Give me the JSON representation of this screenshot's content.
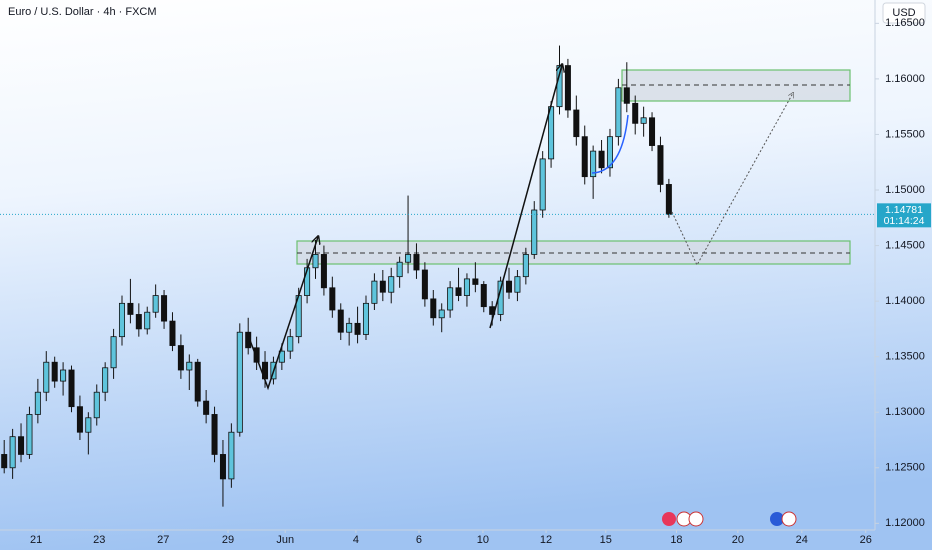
{
  "chart_data": {
    "type": "candlestick",
    "title": "Euro / U.S. Dollar · 4h · FXCM",
    "currency": "USD",
    "up_color": "#5ec4dc",
    "down_color": "#111111",
    "wick_color": "#111111",
    "grid": false,
    "last_price": 1.14781,
    "countdown": "01:14:24",
    "xlim": [
      -0.5,
      103.5
    ],
    "ylim": [
      1.1194,
      1.1671
    ],
    "xticks": [
      {
        "value": 3.8,
        "label": "21"
      },
      {
        "value": 11.3,
        "label": "23"
      },
      {
        "value": 18.9,
        "label": "27"
      },
      {
        "value": 26.6,
        "label": "29"
      },
      {
        "value": 33.4,
        "label": "Jun"
      },
      {
        "value": 41.8,
        "label": "4"
      },
      {
        "value": 49.3,
        "label": "6"
      },
      {
        "value": 56.9,
        "label": "10"
      },
      {
        "value": 64.4,
        "label": "12"
      },
      {
        "value": 71.5,
        "label": "15"
      },
      {
        "value": 79.9,
        "label": "18"
      },
      {
        "value": 87.2,
        "label": "20"
      },
      {
        "value": 94.8,
        "label": "24"
      },
      {
        "value": 102.4,
        "label": "26"
      }
    ],
    "yticks": [
      {
        "value": 1.12,
        "label": "1.12000"
      },
      {
        "value": 1.125,
        "label": "1.12500"
      },
      {
        "value": 1.13,
        "label": "1.13000"
      },
      {
        "value": 1.135,
        "label": "1.13500"
      },
      {
        "value": 1.14,
        "label": "1.14000"
      },
      {
        "value": 1.145,
        "label": "1.14500"
      },
      {
        "value": 1.15,
        "label": "1.15000"
      },
      {
        "value": 1.155,
        "label": "1.15500"
      },
      {
        "value": 1.16,
        "label": "1.16000"
      },
      {
        "value": 1.165,
        "label": "1.16500"
      }
    ],
    "x": [
      0,
      1,
      2,
      3,
      4,
      5,
      6,
      7,
      8,
      9,
      10,
      11,
      12,
      13,
      14,
      15,
      16,
      17,
      18,
      19,
      20,
      21,
      22,
      23,
      24,
      25,
      26,
      27,
      28,
      29,
      30,
      31,
      32,
      33,
      34,
      35,
      36,
      37,
      38,
      39,
      40,
      41,
      42,
      43,
      44,
      45,
      46,
      47,
      48,
      49,
      50,
      51,
      52,
      53,
      54,
      55,
      56,
      57,
      58,
      59,
      60,
      61,
      62,
      63,
      64,
      65,
      66,
      67,
      68,
      69,
      70,
      71,
      72,
      73,
      74,
      75,
      76,
      77,
      78,
      79
    ],
    "open": [
      1.1262,
      1.125,
      1.1278,
      1.1262,
      1.1298,
      1.1318,
      1.1345,
      1.1328,
      1.1338,
      1.1305,
      1.1282,
      1.1295,
      1.1318,
      1.134,
      1.1368,
      1.1398,
      1.1388,
      1.1375,
      1.139,
      1.1405,
      1.1382,
      1.136,
      1.1338,
      1.1345,
      1.131,
      1.1298,
      1.1262,
      1.124,
      1.1282,
      1.1372,
      1.1358,
      1.1345,
      1.133,
      1.1345,
      1.1355,
      1.1368,
      1.1405,
      1.143,
      1.1442,
      1.1412,
      1.1392,
      1.1372,
      1.138,
      1.137,
      1.1398,
      1.1418,
      1.1408,
      1.1422,
      1.1435,
      1.1442,
      1.1428,
      1.1402,
      1.1385,
      1.1392,
      1.1412,
      1.1405,
      1.142,
      1.1415,
      1.1395,
      1.1388,
      1.1418,
      1.1408,
      1.1422,
      1.1442,
      1.1482,
      1.1528,
      1.1575,
      1.1612,
      1.1572,
      1.1548,
      1.1512,
      1.1535,
      1.152,
      1.1548,
      1.1592,
      1.1578,
      1.156,
      1.1565,
      1.154,
      1.1505
    ],
    "high": [
      1.1275,
      1.1285,
      1.129,
      1.1305,
      1.133,
      1.1355,
      1.135,
      1.1345,
      1.1342,
      1.1315,
      1.13,
      1.1325,
      1.1345,
      1.1375,
      1.1405,
      1.142,
      1.1398,
      1.1395,
      1.1415,
      1.141,
      1.139,
      1.137,
      1.1352,
      1.1348,
      1.132,
      1.1305,
      1.1275,
      1.129,
      1.138,
      1.1385,
      1.1368,
      1.1355,
      1.135,
      1.1362,
      1.1375,
      1.1412,
      1.1438,
      1.1455,
      1.145,
      1.1422,
      1.1398,
      1.1385,
      1.1395,
      1.1405,
      1.1425,
      1.1428,
      1.143,
      1.144,
      1.1495,
      1.1452,
      1.1435,
      1.141,
      1.1398,
      1.1418,
      1.143,
      1.1425,
      1.1435,
      1.1418,
      1.14,
      1.1422,
      1.143,
      1.1428,
      1.1448,
      1.149,
      1.1535,
      1.158,
      1.163,
      1.1618,
      1.1585,
      1.1558,
      1.154,
      1.1545,
      1.1555,
      1.16,
      1.1615,
      1.1585,
      1.1575,
      1.157,
      1.1548,
      1.151
    ],
    "low": [
      1.1245,
      1.124,
      1.1255,
      1.1258,
      1.129,
      1.131,
      1.1322,
      1.1315,
      1.13,
      1.1275,
      1.1262,
      1.1288,
      1.131,
      1.133,
      1.136,
      1.138,
      1.1368,
      1.137,
      1.1385,
      1.1375,
      1.1355,
      1.133,
      1.132,
      1.1305,
      1.129,
      1.1255,
      1.1215,
      1.1232,
      1.1278,
      1.1352,
      1.1338,
      1.1322,
      1.1325,
      1.1338,
      1.1348,
      1.1362,
      1.1398,
      1.142,
      1.1405,
      1.1385,
      1.1365,
      1.136,
      1.1362,
      1.1365,
      1.1392,
      1.14,
      1.1398,
      1.1412,
      1.1425,
      1.142,
      1.1395,
      1.1378,
      1.1372,
      1.1385,
      1.14,
      1.1395,
      1.1408,
      1.139,
      1.1378,
      1.1382,
      1.1402,
      1.14,
      1.1415,
      1.1438,
      1.1475,
      1.152,
      1.1568,
      1.1565,
      1.154,
      1.1505,
      1.1492,
      1.1515,
      1.1512,
      1.154,
      1.157,
      1.155,
      1.1548,
      1.1535,
      1.1498,
      1.1475
    ],
    "close": [
      1.125,
      1.1278,
      1.1262,
      1.1298,
      1.1318,
      1.1345,
      1.1328,
      1.1338,
      1.1305,
      1.1282,
      1.1295,
      1.1318,
      1.134,
      1.1368,
      1.1398,
      1.1388,
      1.1375,
      1.139,
      1.1405,
      1.1382,
      1.136,
      1.1338,
      1.1345,
      1.131,
      1.1298,
      1.1262,
      1.124,
      1.1282,
      1.1372,
      1.1358,
      1.1345,
      1.133,
      1.1345,
      1.1355,
      1.1368,
      1.1405,
      1.143,
      1.1442,
      1.1412,
      1.1392,
      1.1372,
      1.138,
      1.137,
      1.1398,
      1.1418,
      1.1408,
      1.1422,
      1.1435,
      1.1442,
      1.1428,
      1.1402,
      1.1385,
      1.1392,
      1.1412,
      1.1405,
      1.142,
      1.1415,
      1.1395,
      1.1388,
      1.1418,
      1.1408,
      1.1422,
      1.1442,
      1.1482,
      1.1528,
      1.1575,
      1.1612,
      1.1572,
      1.1548,
      1.1512,
      1.1535,
      1.152,
      1.1548,
      1.1592,
      1.1578,
      1.156,
      1.1565,
      1.154,
      1.1505,
      1.14781
    ]
  }
}
